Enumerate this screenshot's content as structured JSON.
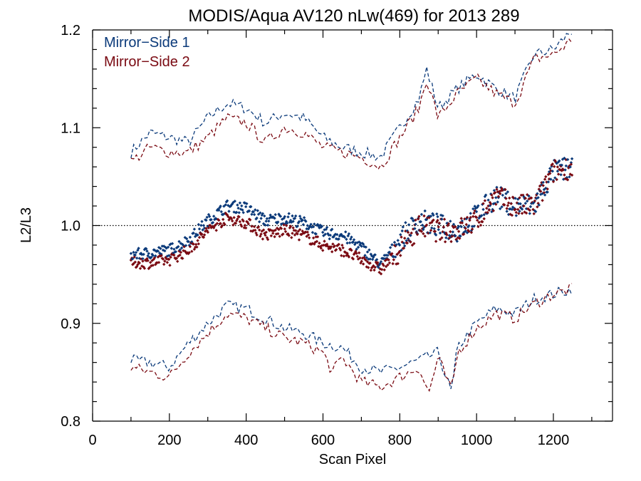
{
  "chart_data": {
    "type": "scatter",
    "title": "MODIS/Aqua AV120 nLw(469) for 2013 289",
    "xlabel": "Scan Pixel",
    "ylabel": "L2/L3",
    "xlim": [
      0,
      1354
    ],
    "ylim": [
      0.8,
      1.2
    ],
    "xticks": [
      0,
      200,
      400,
      600,
      800,
      1000,
      1200
    ],
    "xtick_labels": [
      "0",
      "200",
      "400",
      "600",
      "800",
      "1000",
      "1200"
    ],
    "yticks": [
      0.8,
      0.9,
      1.0,
      1.1,
      1.2
    ],
    "ytick_labels": [
      "0.8",
      "0.9",
      "1.0",
      "1.1",
      "1.2"
    ],
    "reference_line": 1.0,
    "legend_position": "top-left",
    "series": [
      {
        "name": "Mirror−Side 1",
        "color": "#0b3a7a",
        "mean": {
          "x": [
            100,
            150,
            200,
            250,
            300,
            350,
            400,
            450,
            500,
            550,
            600,
            650,
            700,
            750,
            800,
            850,
            900,
            950,
            1000,
            1050,
            1100,
            1150,
            1200,
            1250
          ],
          "y": [
            0.97,
            0.972,
            0.975,
            0.985,
            1.005,
            1.02,
            1.018,
            1.005,
            1.008,
            1.003,
            0.993,
            0.99,
            0.978,
            0.96,
            0.985,
            1.005,
            1.0,
            0.995,
            1.01,
            1.03,
            1.02,
            1.02,
            1.055,
            1.06
          ]
        },
        "upper": {
          "x": [
            100,
            150,
            200,
            250,
            300,
            350,
            400,
            450,
            500,
            550,
            600,
            650,
            700,
            750,
            800,
            850,
            870,
            900,
            950,
            1000,
            1050,
            1100,
            1150,
            1200,
            1250
          ],
          "y": [
            1.075,
            1.095,
            1.09,
            1.085,
            1.11,
            1.125,
            1.12,
            1.105,
            1.115,
            1.11,
            1.09,
            1.08,
            1.075,
            1.07,
            1.1,
            1.13,
            1.16,
            1.12,
            1.14,
            1.155,
            1.14,
            1.13,
            1.175,
            1.18,
            1.2
          ]
        },
        "lower": {
          "x": [
            100,
            150,
            200,
            250,
            300,
            350,
            400,
            450,
            500,
            550,
            600,
            650,
            700,
            750,
            800,
            850,
            900,
            935,
            950,
            1000,
            1050,
            1100,
            1150,
            1200,
            1250
          ],
          "y": [
            0.862,
            0.86,
            0.855,
            0.88,
            0.9,
            0.918,
            0.915,
            0.905,
            0.895,
            0.89,
            0.88,
            0.875,
            0.855,
            0.85,
            0.855,
            0.862,
            0.87,
            0.828,
            0.875,
            0.9,
            0.915,
            0.91,
            0.925,
            0.93,
            0.935
          ]
        }
      },
      {
        "name": "Mirror−Side 2",
        "color": "#7a0a12",
        "mean": {
          "x": [
            100,
            150,
            200,
            250,
            300,
            350,
            400,
            450,
            500,
            550,
            600,
            650,
            700,
            750,
            800,
            850,
            900,
            950,
            1000,
            1050,
            1100,
            1150,
            1200,
            1250
          ],
          "y": [
            0.962,
            0.962,
            0.965,
            0.975,
            0.995,
            1.008,
            1.003,
            0.99,
            0.995,
            0.99,
            0.98,
            0.975,
            0.965,
            0.955,
            0.975,
            1.0,
            0.995,
            0.995,
            1.005,
            1.03,
            1.02,
            1.02,
            1.055,
            1.06
          ]
        },
        "upper": {
          "x": [
            100,
            150,
            200,
            250,
            300,
            350,
            400,
            450,
            500,
            550,
            600,
            650,
            700,
            750,
            800,
            850,
            870,
            900,
            950,
            1000,
            1050,
            1100,
            1150,
            1200,
            1250
          ],
          "y": [
            1.065,
            1.08,
            1.075,
            1.075,
            1.09,
            1.11,
            1.105,
            1.085,
            1.1,
            1.095,
            1.08,
            1.075,
            1.07,
            1.06,
            1.09,
            1.12,
            1.15,
            1.11,
            1.135,
            1.15,
            1.135,
            1.125,
            1.17,
            1.175,
            1.19
          ]
        },
        "lower": {
          "x": [
            100,
            150,
            200,
            250,
            300,
            350,
            400,
            450,
            500,
            550,
            600,
            625,
            650,
            700,
            750,
            800,
            850,
            875,
            900,
            935,
            950,
            1000,
            1050,
            1100,
            1150,
            1200,
            1250
          ],
          "y": [
            0.855,
            0.85,
            0.845,
            0.87,
            0.89,
            0.91,
            0.905,
            0.895,
            0.885,
            0.88,
            0.87,
            0.85,
            0.865,
            0.84,
            0.835,
            0.845,
            0.855,
            0.828,
            0.865,
            0.83,
            0.87,
            0.895,
            0.91,
            0.905,
            0.92,
            0.93,
            0.935
          ]
        }
      }
    ]
  }
}
